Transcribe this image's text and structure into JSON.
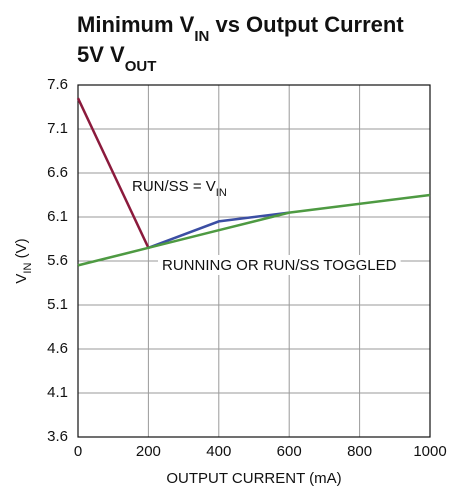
{
  "chart_data": {
    "type": "line",
    "title": [
      "Minimum V",
      "IN",
      " vs Output Current"
    ],
    "subtitle": [
      "5V V",
      "OUT"
    ],
    "x_label": "OUTPUT CURRENT (mA)",
    "y_label": [
      "V",
      "IN",
      " (V)"
    ],
    "annotations": [
      [
        "RUN/SS = V",
        "IN"
      ],
      [
        "RUNNING OR RUN/SS TOGGLED"
      ]
    ],
    "xlim": [
      0,
      1000
    ],
    "xticks": [
      0,
      200,
      400,
      600,
      800,
      1000
    ],
    "ylim": [
      3.6,
      7.6
    ],
    "yticks": [
      3.6,
      4.1,
      4.6,
      5.1,
      5.6,
      6.1,
      6.6,
      7.1,
      7.6
    ],
    "grid": true,
    "series": [
      {
        "color": "#8b1a3c",
        "x": [
          0,
          200
        ],
        "values": [
          7.45,
          5.75
        ]
      },
      {
        "color": "#3b4ea3",
        "x": [
          200,
          400,
          600
        ],
        "values": [
          5.75,
          6.05,
          6.15
        ]
      },
      {
        "color": "#4e9a42",
        "x": [
          0,
          200,
          400,
          600,
          1000
        ],
        "values": [
          5.55,
          5.75,
          5.95,
          6.15,
          6.35
        ]
      }
    ]
  }
}
